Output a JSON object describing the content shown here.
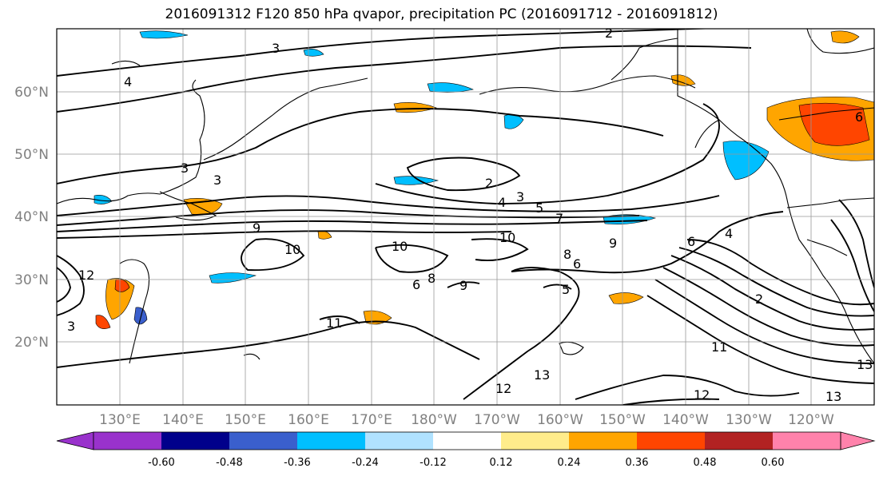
{
  "title": "2016091312 F120 850 hPa qvapor, precipitation PC (2016091712 - 2016091812)",
  "map": {
    "lat_labels": [
      "60°N",
      "50°N",
      "40°N",
      "30°N",
      "20°N"
    ],
    "lon_labels": [
      "130°E",
      "140°E",
      "150°E",
      "160°E",
      "170°E",
      "180°W",
      "170°W",
      "160°W",
      "150°W",
      "140°W",
      "130°W",
      "120°W"
    ],
    "gridlines": true,
    "contour_labels": [
      "3",
      "2",
      "4",
      "3",
      "2",
      "4",
      "3",
      "5",
      "7",
      "9",
      "10",
      "10",
      "10",
      "9",
      "8",
      "6",
      "5",
      "6",
      "8",
      "9",
      "11",
      "12",
      "13",
      "11",
      "12",
      "13",
      "13",
      "2",
      "4",
      "6",
      "3",
      "3",
      "12",
      "6"
    ]
  },
  "colorbar": {
    "tick_labels": [
      "-0.60",
      "-0.48",
      "-0.36",
      "-0.24",
      "-0.12",
      "0.12",
      "0.24",
      "0.36",
      "0.48",
      "0.60"
    ],
    "colors": [
      "#9932cc",
      "#00008b",
      "#3a5fcd",
      "#00bfff",
      "#b0e2ff",
      "#ffffff",
      "#ffec8b",
      "#ffa500",
      "#ff4500",
      "#b22222",
      "#ff82ab"
    ]
  }
}
